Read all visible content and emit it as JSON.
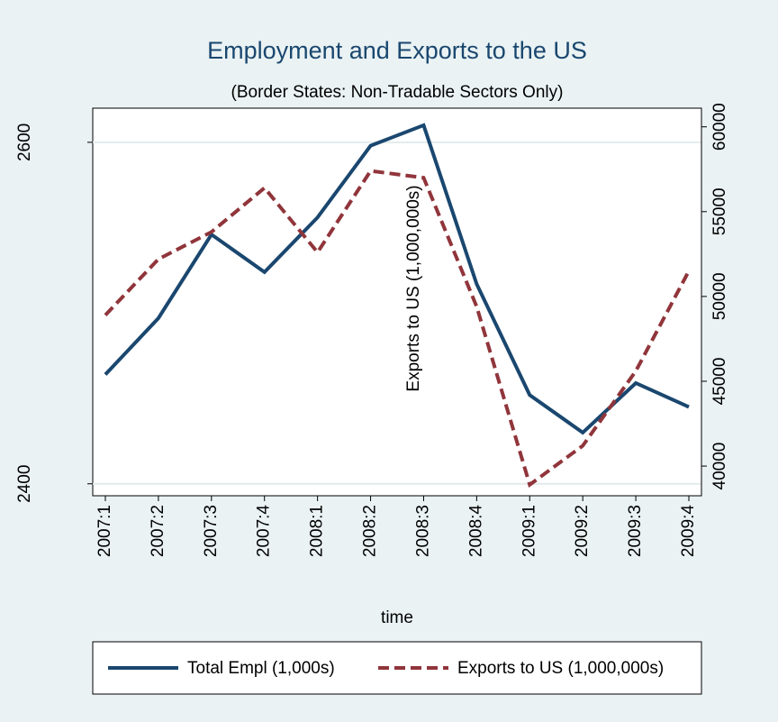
{
  "chart_data": {
    "type": "line",
    "title": "Employment and Exports to the US",
    "subtitle": "(Border States: Non-Tradable Sectors Only)",
    "x_label": "time",
    "y2_label": "Exports to US (1,000,000s)",
    "categories": [
      "2007:1",
      "2007:2",
      "2007:3",
      "2007:4",
      "2008:1",
      "2008:2",
      "2008:3",
      "2008:4",
      "2009:1",
      "2009:2",
      "2009:3",
      "2009:4"
    ],
    "series": [
      {
        "name": "Total Empl (1,000s)",
        "color": "#1a476f",
        "dash": "solid",
        "values": [
          2464,
          2497,
          2546,
          2524,
          2556,
          2598,
          2610,
          2517,
          2452,
          2430,
          2459,
          2445
        ]
      },
      {
        "name": "Exports to US (1,000,000s)",
        "color": "#90353b",
        "dash": "dashed",
        "axis": "y2",
        "values": [
          48900,
          52200,
          53800,
          56400,
          52600,
          57400,
          57000,
          49400,
          38900,
          41200,
          45600,
          51500
        ]
      }
    ],
    "ylim": [
      2393,
      2620
    ],
    "yticks": [
      2400,
      2600
    ],
    "y2lim": [
      38250,
      61100
    ],
    "y2ticks": [
      40000,
      45000,
      50000,
      55000,
      60000
    ],
    "grid": true,
    "legend": "bottom"
  }
}
